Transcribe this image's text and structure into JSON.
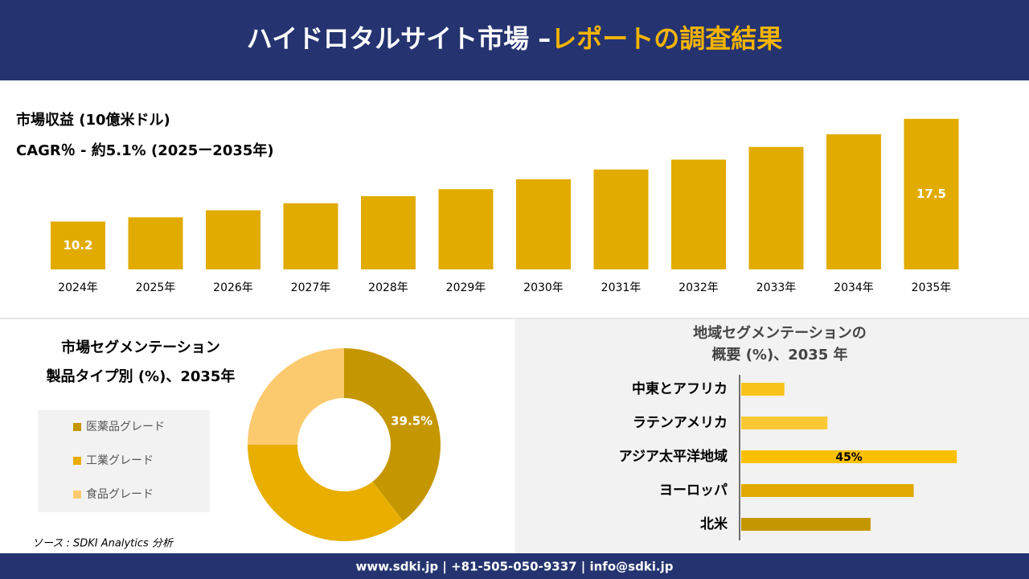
{
  "header": {
    "title": "ハイドロタルサイト市場 –",
    "title_highlight": "レポートの調査結果"
  },
  "chart_data": [
    {
      "type": "bar",
      "title": "市場収益 (10億米ドル)",
      "subtitle": "CAGR％ - 約5.1% (2025ー2035年)",
      "categories": [
        "2024年",
        "2025年",
        "2026年",
        "2027年",
        "2028年",
        "2029年",
        "2030年",
        "2031年",
        "2032年",
        "2033年",
        "2034年",
        "2035年"
      ],
      "values": [
        10.2,
        10.5,
        11.0,
        11.5,
        12.0,
        12.5,
        13.2,
        13.9,
        14.6,
        15.5,
        16.4,
        17.5
      ],
      "value_labels": [
        "10.2",
        null,
        null,
        null,
        null,
        null,
        null,
        null,
        null,
        null,
        null,
        "17.5"
      ],
      "color": "#e2ab00",
      "ylim": [
        6.8,
        18
      ]
    },
    {
      "type": "donut",
      "title": "市場セグメンテーション",
      "subtitle": "製品タイプ別 (%)、2035年",
      "categories": [
        "医薬品グレード",
        "工業グレード",
        "食品グレード"
      ],
      "values": [
        39.5,
        35.5,
        25
      ],
      "value_labels": [
        "39.5%",
        null,
        null
      ],
      "colors": [
        "#c49600",
        "#e8ae00",
        "#fcca6e"
      ]
    },
    {
      "type": "hbar",
      "title": "地域セグメンテーションの",
      "subtitle": "概要 (%)、2035 年",
      "categories": [
        "中東とアフリカ",
        "ラテンアメリカ",
        "アジア太平洋地域",
        "ヨーロッパ",
        "北米"
      ],
      "values": [
        9,
        18,
        45,
        36,
        27
      ],
      "value_labels": [
        null,
        null,
        "45%",
        null,
        null
      ],
      "colors": [
        "#f8c21a",
        "#fcc934",
        "#fcc000",
        "#e0a800",
        "#c49600"
      ],
      "xlim": [
        0,
        50
      ]
    }
  ],
  "source": "ソース : SDKI Analytics 分析",
  "footer": "www.sdki.jp | +81-505-050-9337 | info@sdki.jp"
}
